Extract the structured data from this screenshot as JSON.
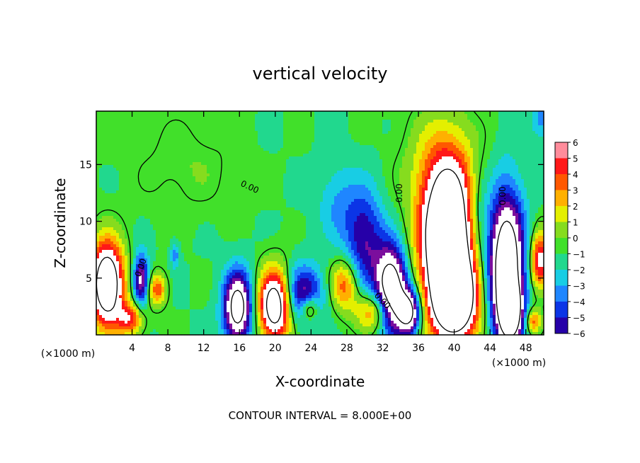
{
  "chart_data": {
    "type": "heatmap",
    "title": "vertical velocity",
    "xlabel": "X-coordinate",
    "ylabel": "Z-coordinate",
    "x_unit_left": "(×1000 m)",
    "x_unit_right": "(×1000 m)",
    "xlim": [
      0,
      50
    ],
    "ylim": [
      0,
      19.7
    ],
    "x_ticks": [
      4,
      8,
      12,
      16,
      20,
      24,
      28,
      32,
      36,
      40,
      44,
      48
    ],
    "y_ticks": [
      5,
      10,
      15
    ],
    "colorbar": {
      "ticks": [
        6,
        5,
        4,
        3,
        2,
        1,
        0,
        -1,
        -2,
        -3,
        -4,
        -5,
        -6
      ],
      "range": [
        -6,
        6
      ]
    },
    "contour_label": "0.00",
    "footer": "CONTOUR INTERVAL = 8.000E+00",
    "features": [
      {
        "x": 1.2,
        "z": 4.5,
        "w": 12,
        "sx": 1.3,
        "sz": 2.6
      },
      {
        "x": 3.8,
        "z": 1.4,
        "w": 5.5,
        "sx": 1.0,
        "sz": 1.0
      },
      {
        "x": 5.0,
        "z": 4.8,
        "w": -7,
        "sx": 0.6,
        "sz": 1.6
      },
      {
        "x": 6.8,
        "z": 4.0,
        "w": 5,
        "sx": 0.7,
        "sz": 1.0
      },
      {
        "x": 8.8,
        "z": 7.0,
        "w": -3,
        "sx": 0.3,
        "sz": 0.8
      },
      {
        "x": 15.8,
        "z": 2.4,
        "w": -10,
        "sx": 1.1,
        "sz": 2.2
      },
      {
        "x": 20.0,
        "z": 2.6,
        "w": 11,
        "sx": 1.3,
        "sz": 2.2
      },
      {
        "x": 23.0,
        "z": 3.5,
        "w": -6,
        "sx": 1.6,
        "sz": 1.8
      },
      {
        "x": 23.8,
        "z": 2.3,
        "w": 5,
        "sx": 0.7,
        "sz": 0.8
      },
      {
        "x": 27.8,
        "z": 4.4,
        "w": 5,
        "sx": 1.1,
        "sz": 1.6
      },
      {
        "x": 31.0,
        "z": 2.0,
        "w": 5,
        "sx": 1.4,
        "sz": 1.2
      },
      {
        "x": 30.0,
        "z": 8.2,
        "w": -5,
        "sx": 1.5,
        "sz": 3.2
      },
      {
        "x": 27.0,
        "z": 11.5,
        "w": -2,
        "sx": 1.6,
        "sz": 2.5
      },
      {
        "x": 33.0,
        "z": 4.0,
        "w": -11,
        "sx": 1.2,
        "sz": 2.6
      },
      {
        "x": 35.0,
        "z": 2.0,
        "w": -9,
        "sx": 0.9,
        "sz": 1.4
      },
      {
        "x": 39.3,
        "z": 8.4,
        "w": 15,
        "sx": 2.1,
        "sz": 4.8
      },
      {
        "x": 40.2,
        "z": 3.0,
        "w": 9,
        "sx": 1.8,
        "sz": 2.5
      },
      {
        "x": 45.8,
        "z": 6.0,
        "w": -12,
        "sx": 1.4,
        "sz": 4.5
      },
      {
        "x": 46.3,
        "z": 2.0,
        "w": -8,
        "sx": 0.9,
        "sz": 1.7
      },
      {
        "x": 49.6,
        "z": 6.5,
        "w": 7,
        "sx": 0.8,
        "sz": 1.8
      },
      {
        "x": 48.8,
        "z": 1.2,
        "w": 5,
        "sx": 0.6,
        "sz": 0.8
      },
      {
        "x": 42.5,
        "z": 10.0,
        "w": -3,
        "sx": 1.0,
        "sz": 3.0
      },
      {
        "x": 38.0,
        "z": 15.0,
        "w": 1.5,
        "sx": 3.0,
        "sz": 3.5
      },
      {
        "x": 10.0,
        "z": 15.0,
        "w": 1,
        "sx": 4.0,
        "sz": 3.0
      },
      {
        "x": 49.8,
        "z": 19.0,
        "w": -2.5,
        "sx": 0.8,
        "sz": 1.2
      }
    ]
  }
}
